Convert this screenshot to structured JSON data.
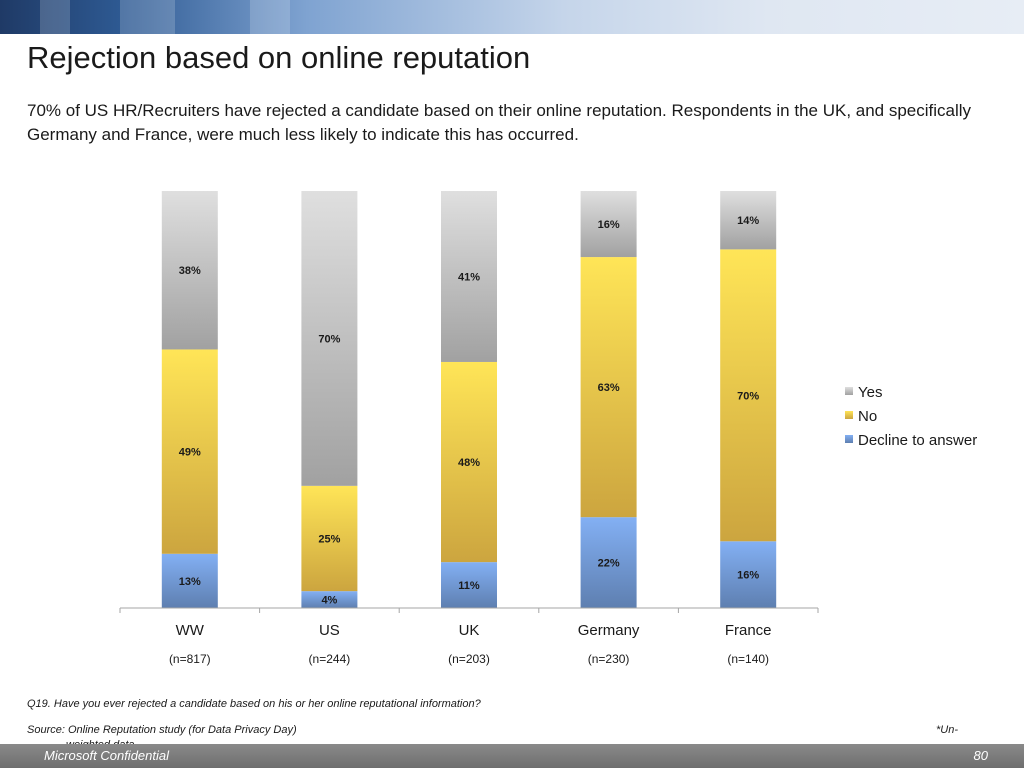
{
  "header": {
    "title": "Rejection based on online reputation",
    "subtitle": "70% of US HR/Recruiters have rejected a candidate based on their online reputation. Respondents in the UK, and specifically Germany and France, were much less likely to indicate this has occurred."
  },
  "chart_data": {
    "type": "bar",
    "stacked": true,
    "percent_stacked": true,
    "categories": [
      "WW",
      "US",
      "UK",
      "Germany",
      "France"
    ],
    "category_notes": [
      "(n=817)",
      "(n=244)",
      "(n=203)",
      "(n=230)",
      "(n=140)"
    ],
    "series": [
      {
        "name": "Decline to answer",
        "values": [
          13,
          4,
          11,
          22,
          16
        ],
        "color": "#6f95cf"
      },
      {
        "name": "No",
        "values": [
          49,
          25,
          48,
          63,
          70
        ],
        "color": "#f0c24a"
      },
      {
        "name": "Yes",
        "values": [
          38,
          70,
          41,
          16,
          14
        ],
        "color": "#bdbdbd"
      }
    ],
    "legend_order": [
      "Yes",
      "No",
      "Decline to answer"
    ],
    "legend_position": "right",
    "data_labels": true,
    "ylim": [
      0,
      100
    ],
    "grid": false
  },
  "notes": {
    "question": "Q19. Have you ever rejected a candidate based on his or her online reputational information?",
    "source": "Source: Online Reputation study (for Data Privacy Day)",
    "footnote_a": "*Un-",
    "footnote_b": "weighted data"
  },
  "footer": {
    "confidential": "Microsoft Confidential",
    "page_number": "80"
  }
}
